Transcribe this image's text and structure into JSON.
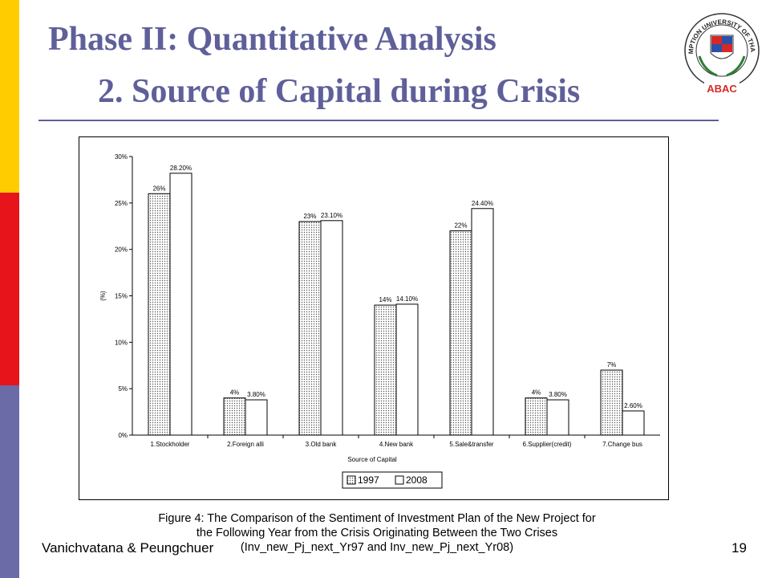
{
  "slide": {
    "title_line1": "Phase II: Quantitative Analysis",
    "title_line2": "2. Source of Capital during Crisis",
    "logo": {
      "name": "assumption-university-seal",
      "arc_text": "ASSUMPTION UNIVERSITY OF THAILAND",
      "label": "ABAC"
    },
    "caption_lines": [
      "Figure 4: The Comparison of the Sentiment of Investment Plan of the New Project for",
      "the Following Year from the Crisis Originating Between the Two Crises",
      "(Inv_new_Pj_next_Yr97 and Inv_new_Pj_next_Yr08)"
    ],
    "author": "Vanichvatana & Peungchuer",
    "page_number": "19",
    "stripe_colors": [
      "#FFCC00",
      "#E8141B",
      "#6B6BA8"
    ],
    "title_color": "#5F5F9A"
  },
  "chart_data": {
    "type": "bar",
    "title": "",
    "xlabel": "Source of Capital",
    "ylabel": "(%)",
    "ylim": [
      0,
      30
    ],
    "yticks": [
      "0%",
      "5%",
      "10%",
      "15%",
      "20%",
      "25%",
      "30%"
    ],
    "grid": false,
    "legend_position": "bottom",
    "categories": [
      "1.Stockholder",
      "2.Foreign alli",
      "3.Old bank",
      "4.New bank",
      "5.Sale&transfer",
      "6.Supplier(credit)",
      "7.Change bus"
    ],
    "series": [
      {
        "name": "1997",
        "values": [
          26,
          4,
          23,
          14,
          22,
          4,
          7
        ],
        "labels": [
          "26%",
          "4%",
          "23%",
          "14%",
          "22%",
          "4%",
          "7%"
        ],
        "fill": "dotted"
      },
      {
        "name": "2008",
        "values": [
          28.2,
          3.8,
          23.1,
          14.1,
          24.4,
          3.8,
          2.6
        ],
        "labels": [
          "28.20%",
          "3.80%",
          "23.10%",
          "14.10%",
          "24.40%",
          "3.80%",
          "2.60%"
        ],
        "fill": "white"
      }
    ]
  }
}
